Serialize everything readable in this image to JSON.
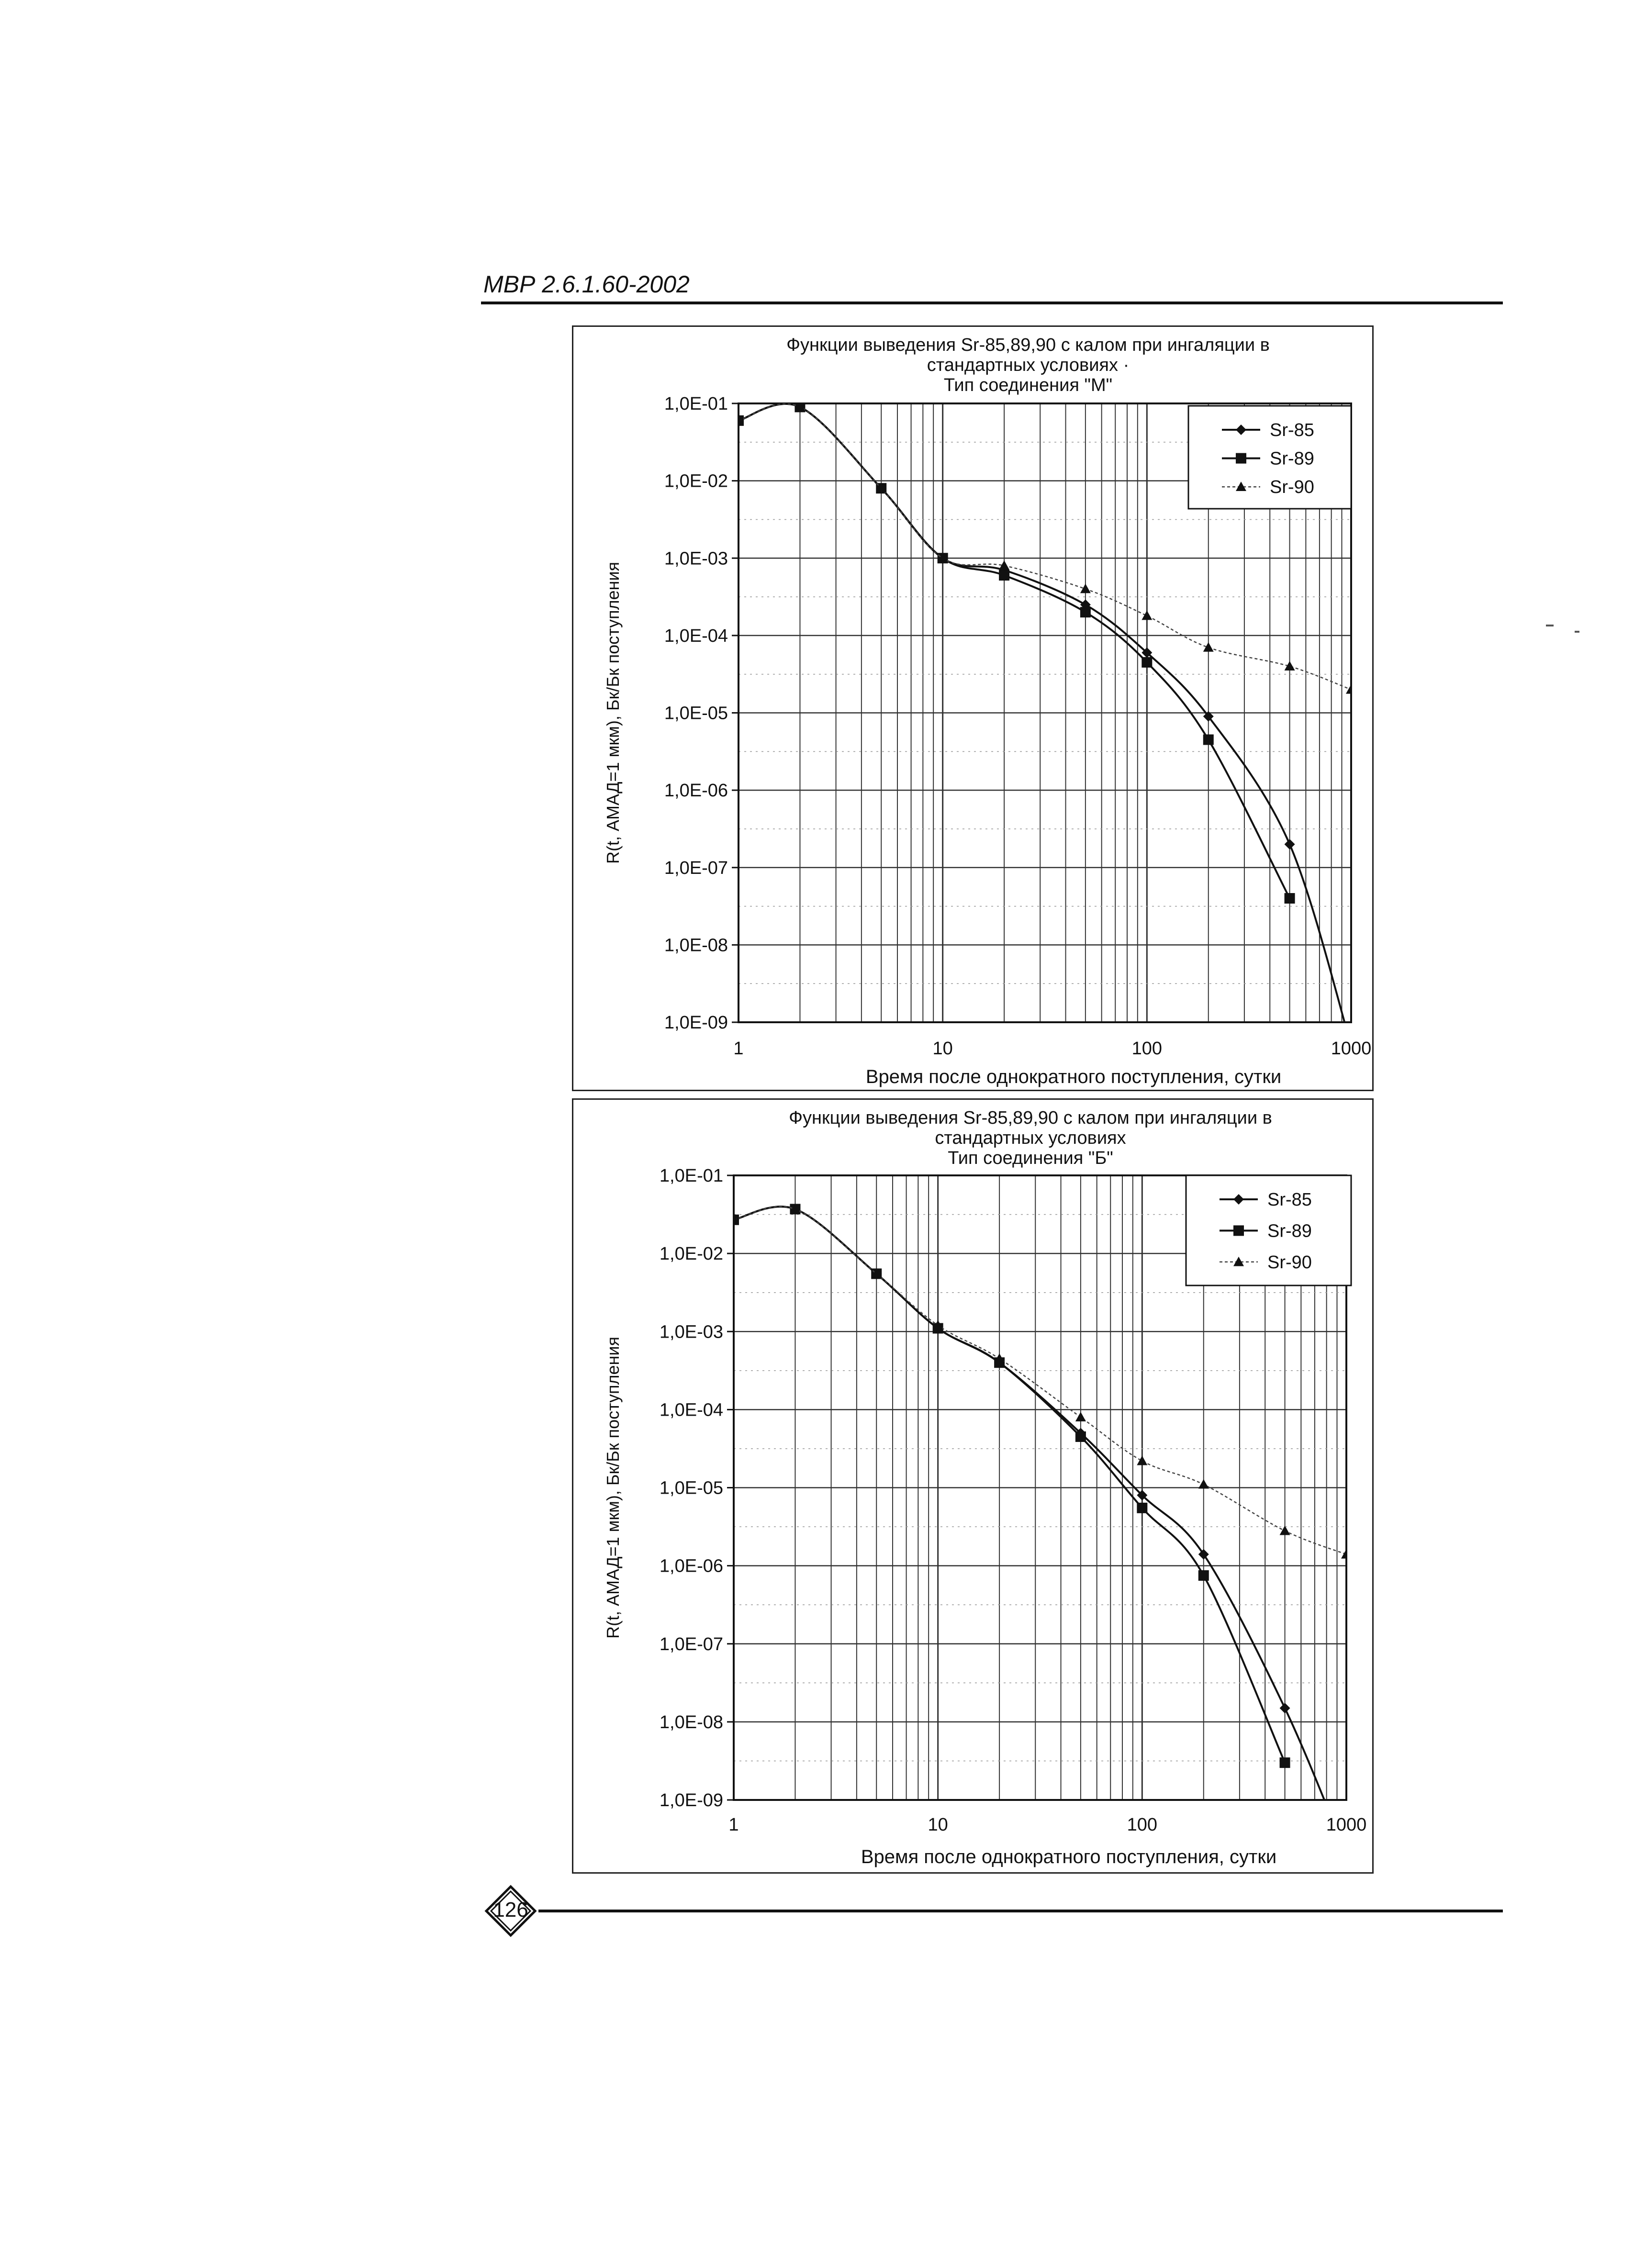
{
  "document": {
    "header": "МВР 2.6.1.60-2002",
    "page_number": "126"
  },
  "chart_data": [
    {
      "type": "line",
      "title": "Функции выведения Sr-85,89,90 с калом при ингаляции в стандартных условиях ·",
      "subtitle": "Тип соединения \"М\"",
      "xlabel": "Время после однократного поступления, сутки",
      "ylabel": "R(t, АМАД=1 мкм), Бк/Бк поступления",
      "x_scale": "log",
      "y_scale": "log",
      "xlim": [
        1,
        1000
      ],
      "ylim": [
        1e-09,
        0.1
      ],
      "x_tick_labels": [
        "1",
        "10",
        "100",
        "1000"
      ],
      "y_tick_labels": [
        "1,0E-01",
        "1,0E-02",
        "1,0E-03",
        "1,0E-04",
        "1,0E-05",
        "1,0E-06",
        "1,0E-07",
        "1,0E-08",
        "1,0E-09"
      ],
      "grid": true,
      "legend_position": "top-right",
      "series": [
        {
          "name": "Sr-85",
          "marker": "diamond",
          "x": [
            1,
            2,
            5,
            10,
            20,
            50,
            100,
            200,
            500,
            1000
          ],
          "y": [
            0.06,
            0.09,
            0.008,
            0.001,
            0.0007,
            0.00025,
            6e-05,
            9e-06,
            2e-07,
            5e-10
          ]
        },
        {
          "name": "Sr-89",
          "marker": "square",
          "x": [
            1,
            2,
            5,
            10,
            20,
            50,
            100,
            200,
            500
          ],
          "y": [
            0.06,
            0.09,
            0.008,
            0.001,
            0.0006,
            0.0002,
            4.5e-05,
            4.5e-06,
            4e-08
          ]
        },
        {
          "name": "Sr-90",
          "marker": "triangle",
          "x": [
            1,
            2,
            5,
            10,
            20,
            50,
            100,
            200,
            500,
            1000
          ],
          "y": [
            0.06,
            0.09,
            0.008,
            0.001,
            0.0008,
            0.0004,
            0.00018,
            7e-05,
            4e-05,
            2e-05
          ]
        }
      ]
    },
    {
      "type": "line",
      "title": "Функции выведения Sr-85,89,90 с калом при ингаляции в стандартных условиях",
      "subtitle": "Тип соединения \"Б\"",
      "xlabel": "Время после однократного поступления, сутки",
      "ylabel": "R(t, АМАД=1 мкм), Бк/Бк поступления",
      "x_scale": "log",
      "y_scale": "log",
      "xlim": [
        1,
        1000
      ],
      "ylim": [
        1e-09,
        0.1
      ],
      "x_tick_labels": [
        "1",
        "10",
        "100",
        "1000"
      ],
      "y_tick_labels": [
        "1,0E-01",
        "1,0E-02",
        "1,0E-03",
        "1,0E-04",
        "1,0E-05",
        "1,0E-06",
        "1,0E-07",
        "1,0E-08",
        "1,0E-09"
      ],
      "grid": true,
      "legend_position": "top-right",
      "series": [
        {
          "name": "Sr-85",
          "marker": "diamond",
          "x": [
            1,
            2,
            5,
            10,
            20,
            50,
            100,
            200,
            500,
            1000
          ],
          "y": [
            0.027,
            0.037,
            0.0055,
            0.0011,
            0.0004,
            5e-05,
            8e-06,
            1.4e-06,
            1.5e-08,
            2e-10
          ]
        },
        {
          "name": "Sr-89",
          "marker": "square",
          "x": [
            1,
            2,
            5,
            10,
            20,
            50,
            100,
            200,
            500
          ],
          "y": [
            0.027,
            0.037,
            0.0055,
            0.0011,
            0.0004,
            4.5e-05,
            5.5e-06,
            7.5e-07,
            3e-09
          ]
        },
        {
          "name": "Sr-90",
          "marker": "triangle",
          "x": [
            1,
            2,
            5,
            10,
            20,
            50,
            100,
            200,
            500,
            1000
          ],
          "y": [
            0.027,
            0.037,
            0.0055,
            0.0012,
            0.00045,
            8e-05,
            2.2e-05,
            1.1e-05,
            2.8e-06,
            1.4e-06
          ]
        }
      ]
    }
  ]
}
